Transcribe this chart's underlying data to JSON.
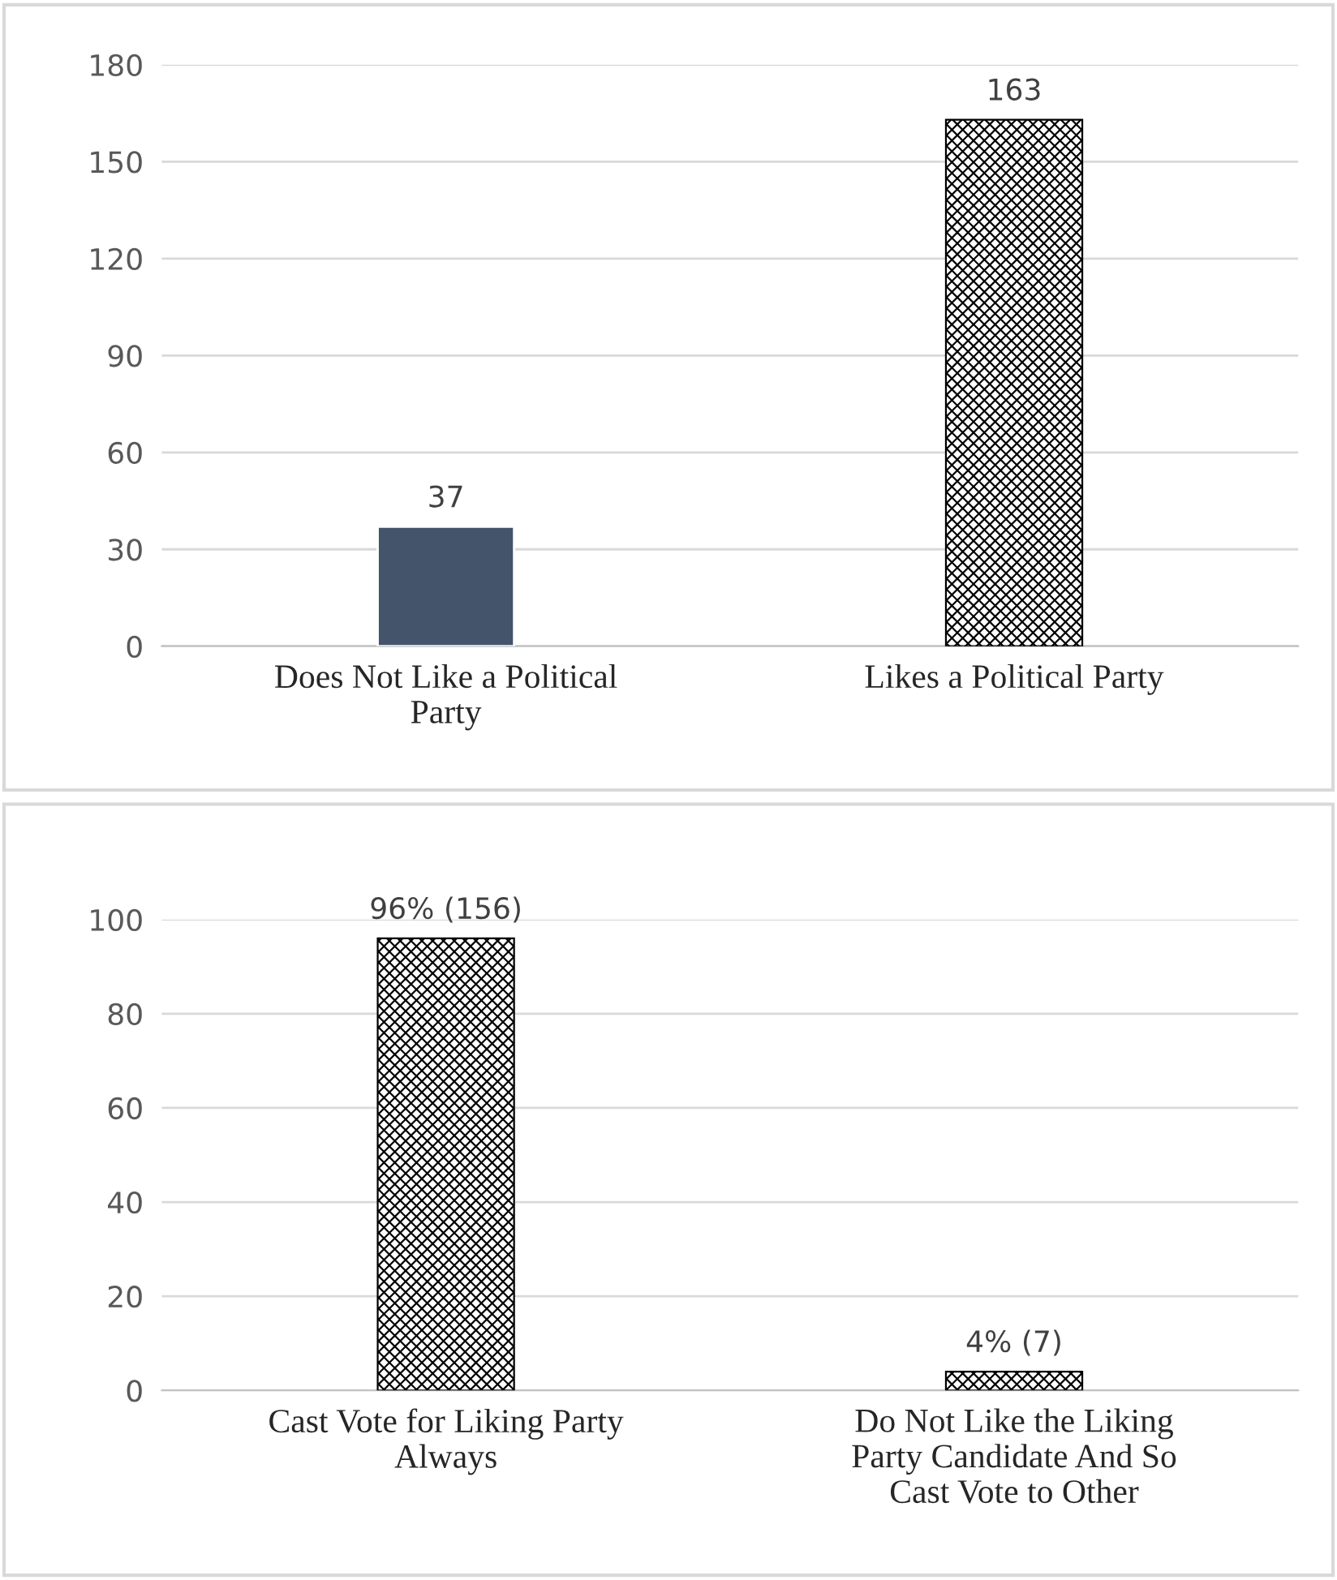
{
  "chart_data": [
    {
      "type": "bar",
      "categories": [
        "Does Not Like a Political\nParty",
        "Likes a Political Party"
      ],
      "values": [
        37,
        163
      ],
      "colors": [
        "#44546a",
        "#000000"
      ],
      "ylim": [
        0,
        180
      ],
      "yticks": [
        0,
        30,
        60,
        90,
        120,
        150,
        180
      ],
      "grid": "y",
      "data_labels": true,
      "legend": false
    },
    {
      "type": "bar",
      "categories": [
        "Cast Vote for Liking Party\nAlways",
        "Do Not Like the Liking\nParty Candidate And So\nCast Vote to Other"
      ],
      "values": [
        96,
        4
      ],
      "value_labels": [
        "96% (156)",
        "4% (7)"
      ],
      "colors": [
        "#000000",
        "#000000"
      ],
      "ylim": [
        0,
        100
      ],
      "yticks": [
        0,
        20,
        40,
        60,
        80,
        100
      ],
      "grid": "y",
      "legend": false
    }
  ]
}
